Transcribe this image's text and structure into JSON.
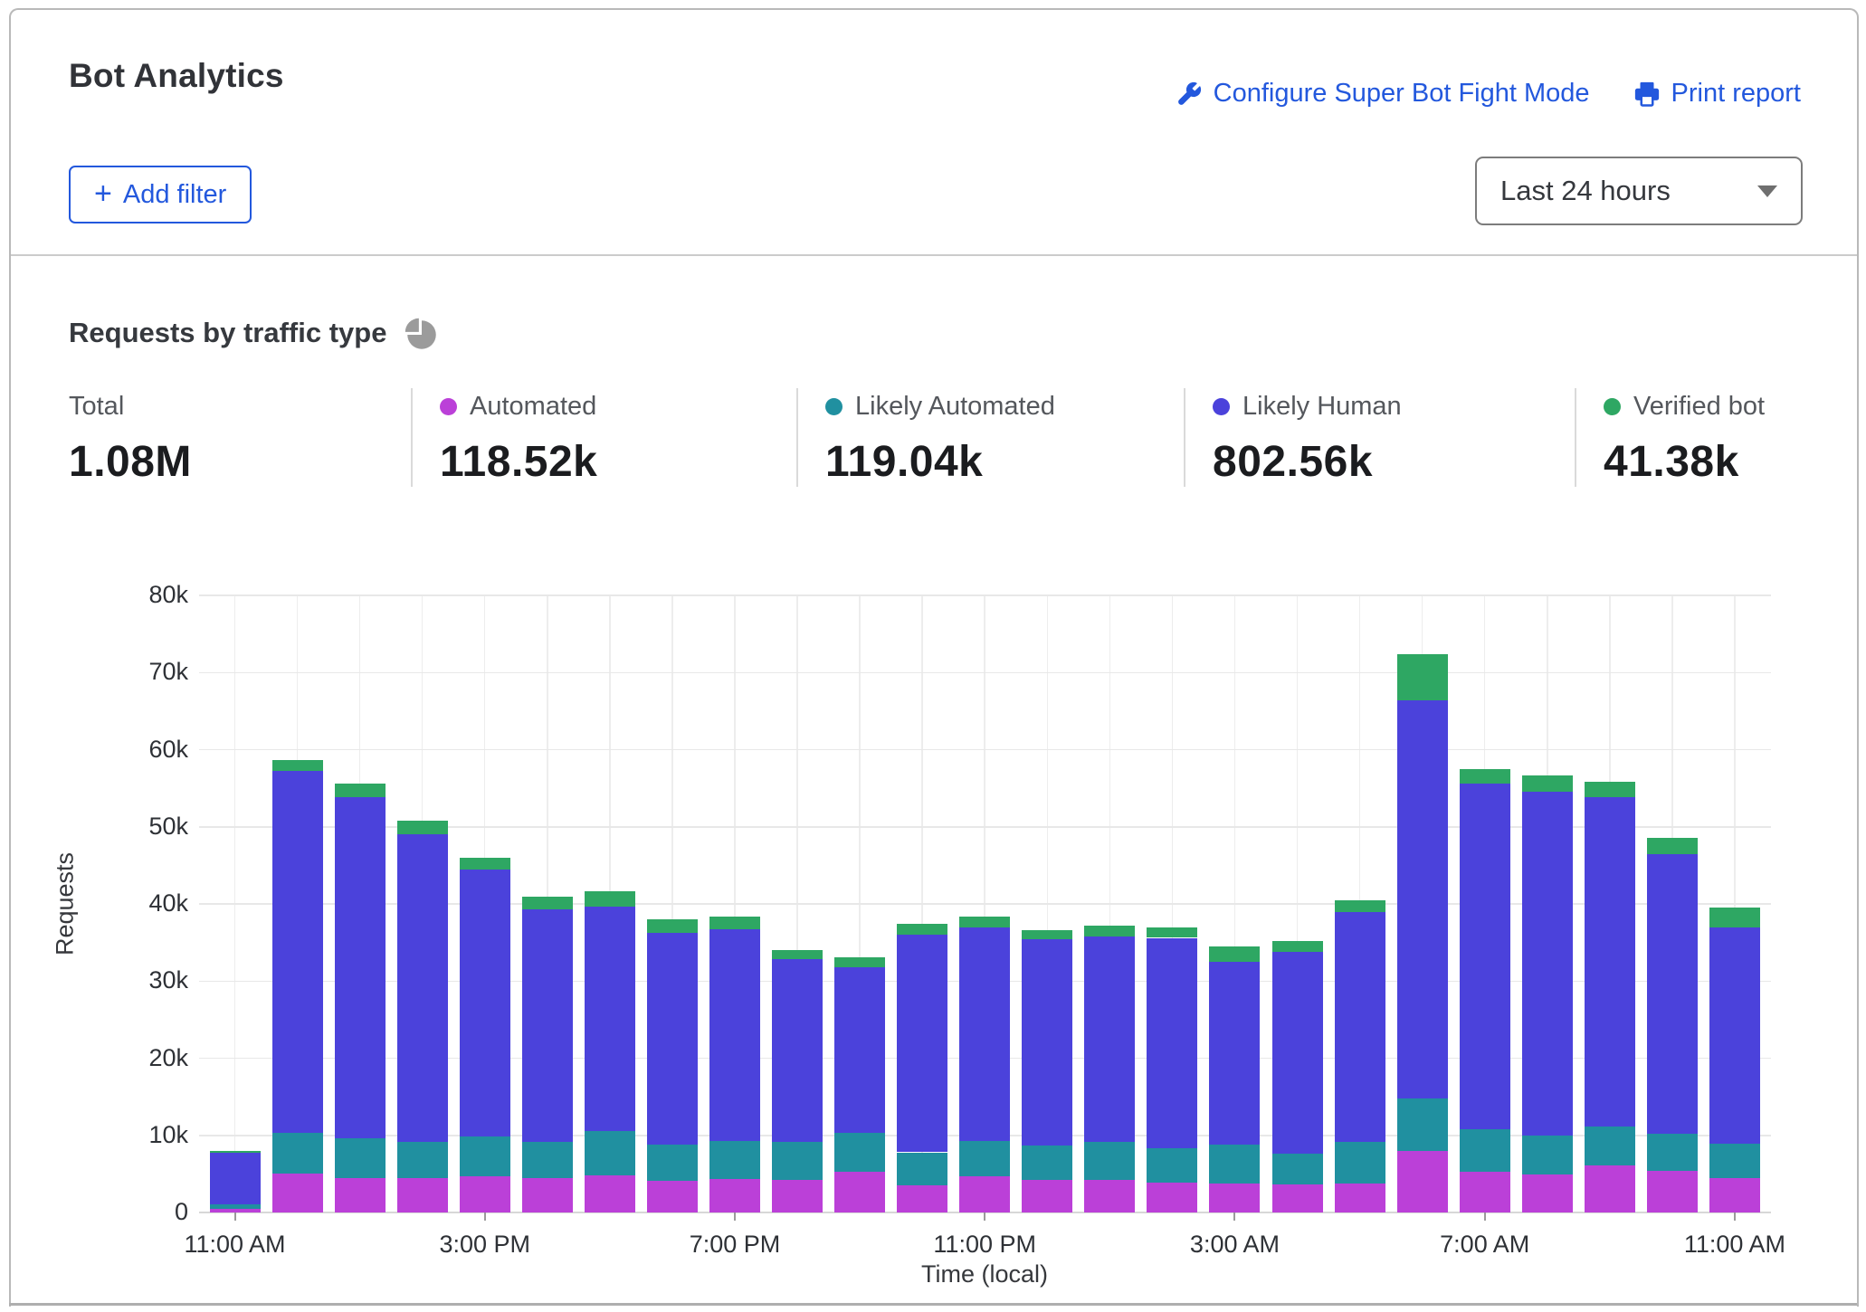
{
  "header": {
    "title": "Bot Analytics",
    "links": [
      {
        "label": "Configure Super Bot Fight Mode",
        "icon": "wrench-icon"
      },
      {
        "label": "Print report",
        "icon": "printer-icon"
      }
    ],
    "add_filter_plus": "+",
    "add_filter_label": "Add filter",
    "time_range": "Last 24 hours"
  },
  "section": {
    "title": "Requests by traffic type"
  },
  "stats": [
    {
      "label": "Total",
      "value": "1.08M",
      "color": null
    },
    {
      "label": "Automated",
      "value": "118.52k",
      "color": "#bb40d8"
    },
    {
      "label": "Likely Automated",
      "value": "119.04k",
      "color": "#2090a0"
    },
    {
      "label": "Likely Human",
      "value": "802.56k",
      "color": "#4b42db"
    },
    {
      "label": "Verified bot",
      "value": "41.38k",
      "color": "#2ea763"
    }
  ],
  "colors": {
    "automated": "#bb40d8",
    "likely_automated": "#2090a0",
    "likely_human": "#4b42db",
    "verified_bot": "#2ea763",
    "link_blue": "#2358dd"
  },
  "chart_data": {
    "type": "bar",
    "stacked": true,
    "title": "Requests by traffic type",
    "xlabel": "Time (local)",
    "ylabel": "Requests",
    "ylim": [
      0,
      80000
    ],
    "values_unit": "thousands of requests",
    "grid": "on",
    "y_ticks": [
      "0",
      "10k",
      "20k",
      "30k",
      "40k",
      "50k",
      "60k",
      "70k",
      "80k"
    ],
    "categories": [
      "11:00 AM",
      "12:00 PM",
      "1:00 PM",
      "2:00 PM",
      "3:00 PM",
      "4:00 PM",
      "5:00 PM",
      "6:00 PM",
      "7:00 PM",
      "8:00 PM",
      "9:00 PM",
      "10:00 PM",
      "11:00 PM",
      "12:00 AM",
      "1:00 AM",
      "2:00 AM",
      "3:00 AM",
      "4:00 AM",
      "5:00 AM",
      "6:00 AM",
      "7:00 AM",
      "8:00 AM",
      "9:00 AM",
      "10:00 AM",
      "11:00 AM"
    ],
    "x_ticks": [
      {
        "index": 0,
        "label": "11:00 AM"
      },
      {
        "index": 4,
        "label": "3:00 PM"
      },
      {
        "index": 8,
        "label": "7:00 PM"
      },
      {
        "index": 12,
        "label": "11:00 PM"
      },
      {
        "index": 16,
        "label": "3:00 AM"
      },
      {
        "index": 20,
        "label": "7:00 AM"
      },
      {
        "index": 24,
        "label": "11:00 AM"
      }
    ],
    "series": [
      {
        "name": "Automated",
        "key": "automated",
        "color": "#bb40d8",
        "values": [
          0.5,
          5.0,
          4.5,
          4.5,
          4.7,
          4.5,
          4.8,
          4.1,
          4.3,
          4.2,
          5.3,
          3.5,
          4.7,
          4.2,
          4.2,
          3.9,
          3.7,
          3.6,
          3.8,
          8.0,
          5.3,
          4.9,
          6.1,
          5.4,
          4.5
        ]
      },
      {
        "name": "Likely Automated",
        "key": "likely_automated",
        "color": "#2090a0",
        "values": [
          0.5,
          5.3,
          5.1,
          4.7,
          5.1,
          4.6,
          5.7,
          4.7,
          5.0,
          5.0,
          5.0,
          4.3,
          4.6,
          4.5,
          5.0,
          4.4,
          5.1,
          4.0,
          5.4,
          6.8,
          5.5,
          5.1,
          5.1,
          4.8,
          4.4
        ]
      },
      {
        "name": "Likely Human",
        "key": "likely_human",
        "color": "#4b42db",
        "values": [
          6.7,
          47.0,
          44.2,
          39.8,
          34.7,
          30.2,
          29.1,
          27.5,
          27.4,
          23.6,
          21.5,
          28.2,
          27.7,
          26.7,
          26.6,
          27.3,
          23.7,
          26.2,
          29.8,
          51.6,
          44.8,
          44.5,
          42.6,
          36.3,
          28.1
        ]
      },
      {
        "name": "Verified bot",
        "key": "verified_bot",
        "color": "#2ea763",
        "values": [
          0.3,
          1.3,
          1.8,
          1.8,
          1.5,
          1.6,
          2.0,
          1.7,
          1.7,
          1.2,
          1.3,
          1.4,
          1.3,
          1.2,
          1.4,
          1.4,
          2.0,
          1.4,
          1.5,
          6.0,
          1.9,
          2.2,
          2.0,
          2.1,
          2.5
        ]
      }
    ]
  }
}
